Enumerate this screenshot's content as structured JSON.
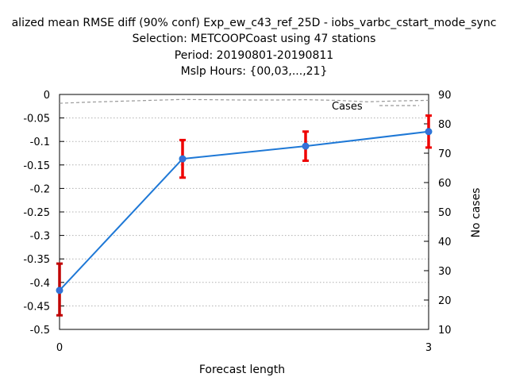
{
  "title_lines": [
    "alized mean RMSE diff (90% conf) Exp_ew_c43_ref_25D - iobs_varbc_cstart_mode_sync",
    "Selection: METCOOPCoast using    47 stations",
    "Period: 20190801-20190811",
    "Mslp   Hours: {00,03,...,21}"
  ],
  "colors": {
    "series": "#1e78d6",
    "marker": "#3a6fd8",
    "errorbar_first": "#c00000",
    "errorbar": "#ee0000",
    "cases": "#999999",
    "grid": "#b0b0b0"
  },
  "chart_data": {
    "type": "line",
    "xlabel": "Forecast length",
    "ylabel": "",
    "y2label": "No cases",
    "xlim": [
      0,
      3
    ],
    "ylim": [
      -0.5,
      0
    ],
    "y2lim": [
      10,
      90
    ],
    "x_ticks": [
      0,
      3
    ],
    "x_tick_labels": [
      "0",
      "3"
    ],
    "y_ticks": [
      0,
      -0.05,
      -0.1,
      -0.15,
      -0.2,
      -0.25,
      -0.3,
      -0.35,
      -0.4,
      -0.45,
      -0.5
    ],
    "y_tick_labels": [
      "0",
      "-0.05",
      "-0.1",
      "-0.15",
      "-0.2",
      "-0.25",
      "-0.3",
      "-0.35",
      "-0.4",
      "-0.45",
      "-0.5"
    ],
    "y2_ticks": [
      90,
      80,
      70,
      60,
      50,
      40,
      30,
      20,
      10
    ],
    "y2_tick_labels": [
      "90",
      "80",
      "70",
      "60",
      "50",
      "40",
      "30",
      "20",
      "10"
    ],
    "grid": true,
    "series": [
      {
        "name": "",
        "axis": "left",
        "x": [
          0,
          1,
          2,
          3
        ],
        "y": [
          -0.417,
          -0.137,
          -0.11,
          -0.079
        ],
        "err_low": [
          -0.47,
          -0.177,
          -0.141,
          -0.113
        ],
        "err_high": [
          -0.36,
          -0.097,
          -0.079,
          -0.045
        ]
      },
      {
        "name": "Cases",
        "axis": "right",
        "style": "dashed",
        "x": [
          0,
          0.25,
          0.5,
          0.75,
          1,
          1.25,
          1.5,
          1.75,
          2,
          2.25,
          2.5,
          2.75,
          3
        ],
        "y": [
          87,
          87.4,
          87.7,
          88,
          88.3,
          88.2,
          88.1,
          88.1,
          88.2,
          88,
          87.5,
          87.8,
          88
        ]
      }
    ],
    "legend": {
      "placement": "top-right",
      "entries": [
        "Cases"
      ]
    }
  }
}
